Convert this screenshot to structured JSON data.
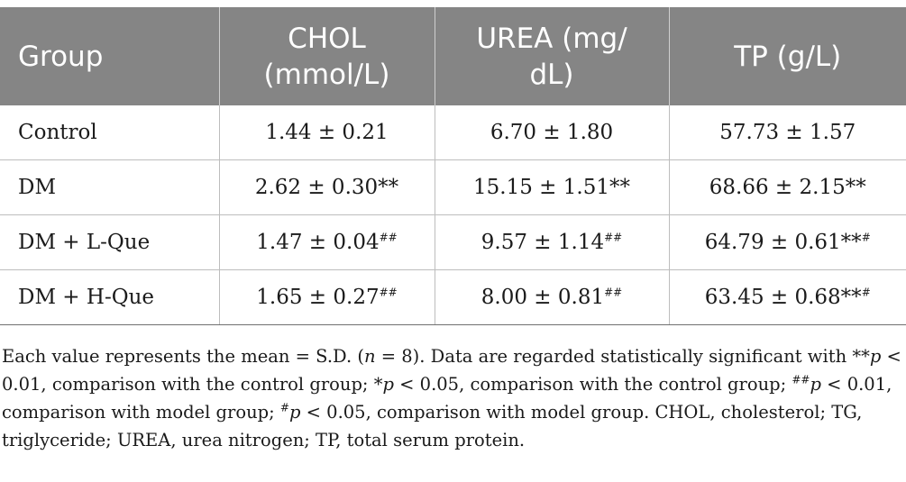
{
  "table": {
    "headers": [
      {
        "line1": "Group",
        "line2": ""
      },
      {
        "line1": "CHOL",
        "line2": "(mmol/L)"
      },
      {
        "line1": "UREA (mg/",
        "line2": "dL)"
      },
      {
        "line1": "TP (g/L)",
        "line2": ""
      }
    ],
    "rows": [
      {
        "group": "Control",
        "chol": {
          "value": "1.44 ± 0.21",
          "mark": ""
        },
        "urea": {
          "value": "6.70 ± 1.80",
          "mark": ""
        },
        "tp": {
          "value": "57.73 ± 1.57",
          "mark": ""
        }
      },
      {
        "group": "DM",
        "chol": {
          "value": "2.62 ± 0.30**",
          "mark": ""
        },
        "urea": {
          "value": "15.15 ± 1.51**",
          "mark": ""
        },
        "tp": {
          "value": "68.66 ± 2.15**",
          "mark": ""
        }
      },
      {
        "group": "DM + L-Que",
        "chol": {
          "value": "1.47 ± 0.04",
          "mark": "##"
        },
        "urea": {
          "value": "9.57 ± 1.14",
          "mark": "##"
        },
        "tp": {
          "value": "64.79 ± 0.61**",
          "mark": "#"
        }
      },
      {
        "group": "DM + H-Que",
        "chol": {
          "value": "1.65 ± 0.27",
          "mark": "##"
        },
        "urea": {
          "value": "8.00 ± 0.81",
          "mark": "##"
        },
        "tp": {
          "value": "63.45 ± 0.68**",
          "mark": "#"
        }
      }
    ]
  },
  "footnote": {
    "t1": "Each value represents the mean = S.D. (",
    "n_symbol": "n",
    "t2": " = 8). Data are regarded statistically significant with **",
    "p1": "p",
    "t3": " < 0.01, comparison with the control group; *",
    "p2": "p",
    "t4": " < 0.05, comparison with the control group; ",
    "sup1": "##",
    "p3": "p",
    "t5": " < 0.01, comparison with model group; ",
    "sup2": "#",
    "p4": "p",
    "t6": " < 0.05, comparison with model group. CHOL, cholesterol; TG, triglyceride; UREA, urea nitrogen; TP, total serum protein."
  },
  "colors": {
    "header_bg": "#858585",
    "header_text": "#ffffff",
    "grid_line": "#bdbdbd"
  }
}
